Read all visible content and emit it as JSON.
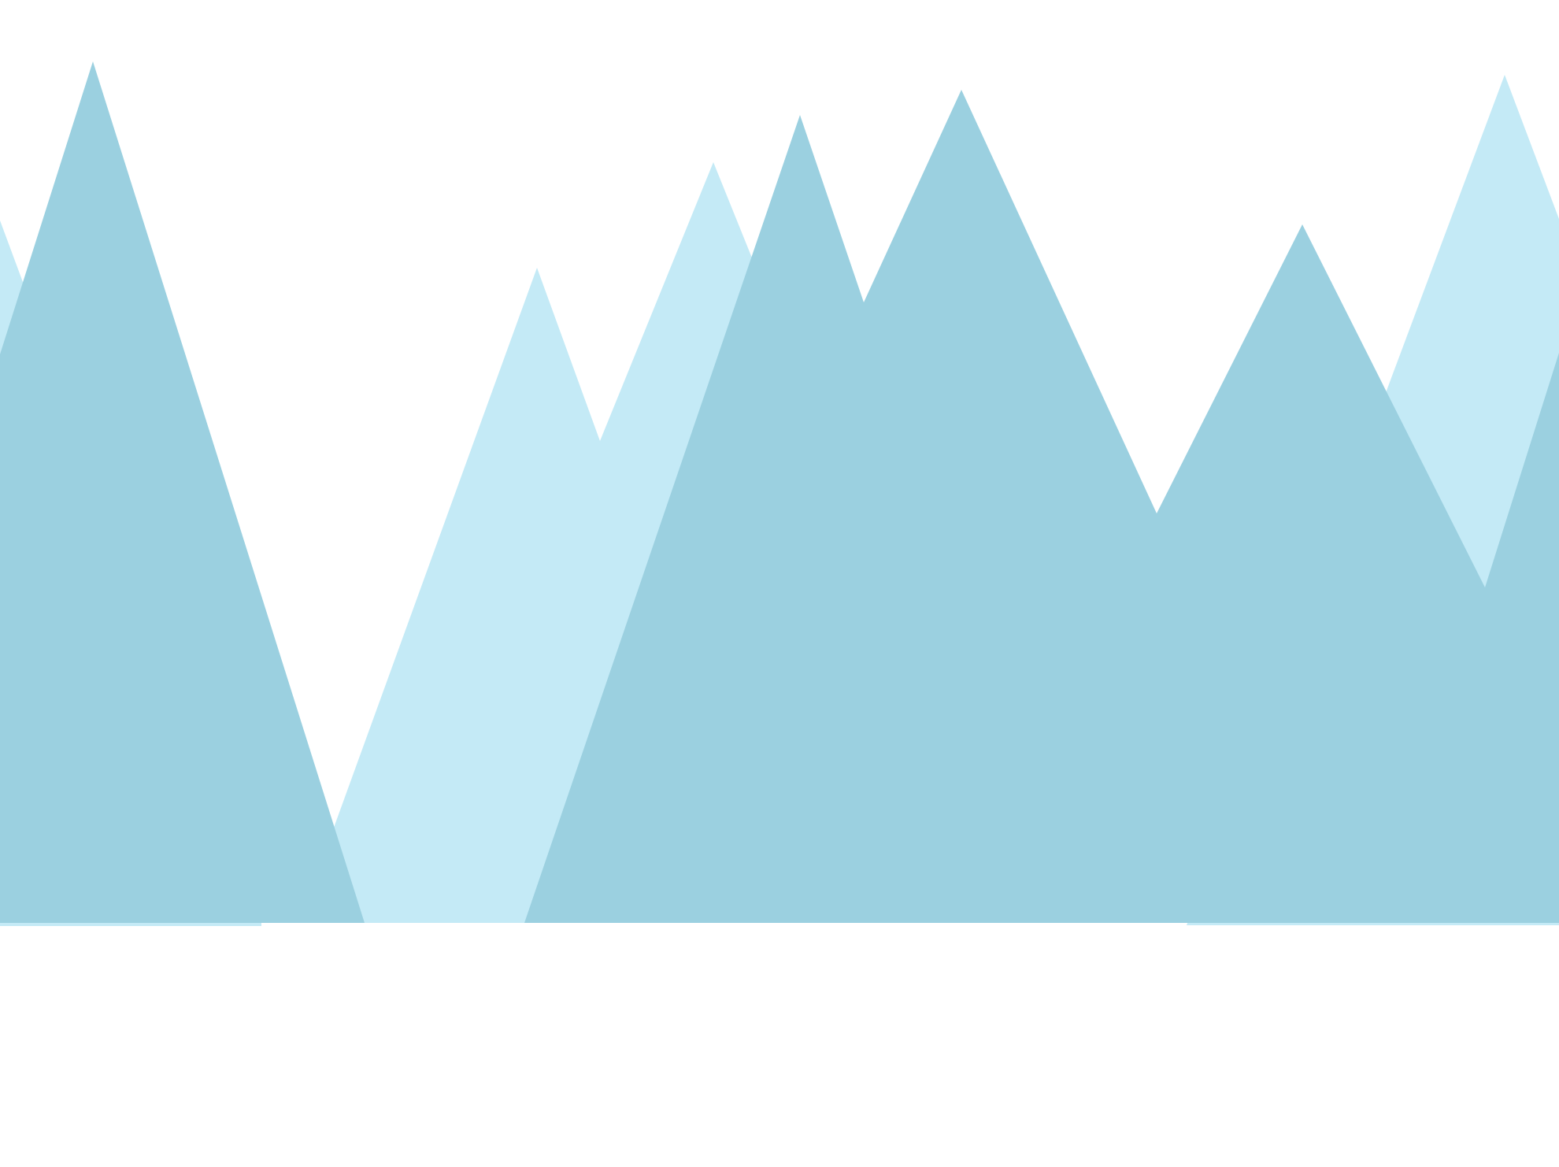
{
  "illustration": {
    "subject": "mountain-range",
    "colors": {
      "background": "#ffffff",
      "back_layer": "#c4eaf6",
      "front_layer": "#9bd0e0"
    }
  }
}
